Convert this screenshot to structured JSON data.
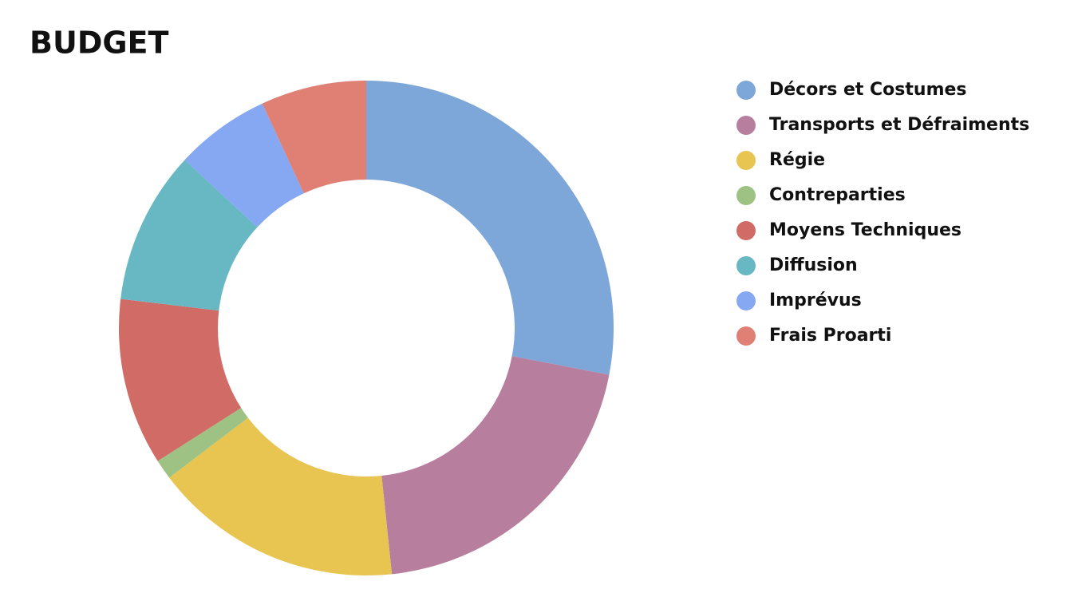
{
  "chart_data": {
    "type": "donut",
    "title": "BUDGET",
    "categories": [
      "Décors et Costumes",
      "Transports et Défraiments",
      "Régie",
      "Contreparties",
      "Moyens Techniques",
      "Diffusion",
      "Imprévus",
      "Frais Proarti"
    ],
    "values": [
      28,
      20.3,
      16.3,
      1.3,
      10.9,
      10,
      6.2,
      6.9
    ],
    "colors": [
      "#7da6d9",
      "#b77e9e",
      "#e8c451",
      "#9dc284",
      "#d06b66",
      "#67b8c2",
      "#86a7f2",
      "#e07f74"
    ],
    "legend": "right"
  }
}
